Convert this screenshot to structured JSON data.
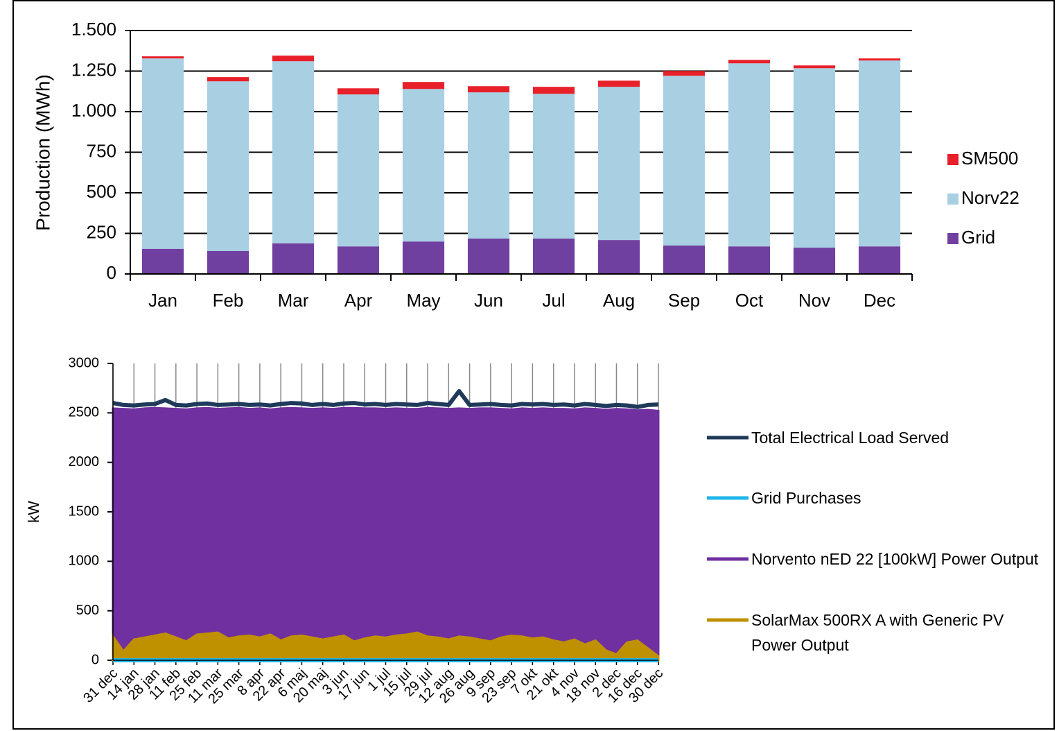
{
  "chart_data": [
    {
      "type": "bar",
      "stacked": true,
      "y_label": "Production (MWh)",
      "grid": true,
      "legend": "right",
      "categories": [
        "Jan",
        "Feb",
        "Mar",
        "Apr",
        "May",
        "Jun",
        "Jul",
        "Aug",
        "Sep",
        "Oct",
        "Nov",
        "Dec"
      ],
      "series": [
        {
          "name": "Grid",
          "color": "#7040a0",
          "values": [
            155,
            141,
            188,
            170,
            200,
            218,
            218,
            209,
            175,
            170,
            162,
            170
          ]
        },
        {
          "name": "Norv22",
          "color": "#a8cfe2",
          "values": [
            1173,
            1046,
            1123,
            936,
            940,
            901,
            892,
            944,
            1046,
            1128,
            1106,
            1145
          ]
        },
        {
          "name": "SM500",
          "color": "#e8202a",
          "values": [
            13,
            26,
            34,
            38,
            43,
            38,
            43,
            38,
            30,
            21,
            17,
            13
          ]
        }
      ],
      "ylim": [
        0,
        1500
      ],
      "yticks": [
        0,
        250,
        500,
        750,
        {
          "value": 1000,
          "label": "1.000"
        },
        {
          "value": 1250,
          "label": "1.250"
        },
        {
          "value": 1500,
          "label": "1.500"
        }
      ]
    },
    {
      "type": "line",
      "y_label": "kW",
      "xgrid": true,
      "legend": "right",
      "categories": [
        "31 dec",
        null,
        "14 jan",
        null,
        "28 jan",
        null,
        "11 feb",
        null,
        "25 feb",
        null,
        "11 mar",
        null,
        "25 mar",
        null,
        "8 apr",
        null,
        "22 apr",
        null,
        "6 maj",
        null,
        "20 maj",
        null,
        "3 jun",
        null,
        "17 jun",
        null,
        "1 jul",
        null,
        "15 jul",
        null,
        "29 jul",
        null,
        "12 aug",
        null,
        "26 aug",
        null,
        "9 sep",
        null,
        "23 sep",
        null,
        "7 okt",
        null,
        "21 okt",
        null,
        "4 nov",
        null,
        "18 nov",
        null,
        "2 dec",
        null,
        "16 dec",
        null,
        "30 dec"
      ],
      "series": [
        {
          "name": "Total Electrical Load Served",
          "color": "#1f3a5a",
          "fill": false,
          "values": [
            2600,
            2580,
            2575,
            2585,
            2590,
            2630,
            2580,
            2575,
            2590,
            2595,
            2580,
            2585,
            2590,
            2580,
            2585,
            2575,
            2590,
            2600,
            2595,
            2580,
            2590,
            2580,
            2595,
            2600,
            2585,
            2590,
            2580,
            2590,
            2585,
            2580,
            2600,
            2590,
            2580,
            2720,
            2580,
            2585,
            2590,
            2580,
            2575,
            2590,
            2585,
            2590,
            2580,
            2585,
            2575,
            2590,
            2580,
            2570,
            2580,
            2575,
            2560,
            2580,
            2585
          ]
        },
        {
          "name": "Grid Purchases",
          "color": "#1fb4e8",
          "fill": false,
          "values": [
            0,
            0,
            0,
            0,
            0,
            0,
            0,
            0,
            0,
            0,
            0,
            0,
            0,
            0,
            0,
            0,
            0,
            0,
            0,
            0,
            0,
            0,
            0,
            0,
            0,
            0,
            0,
            0,
            0,
            0,
            0,
            0,
            0,
            0,
            0,
            0,
            0,
            0,
            0,
            0,
            0,
            0,
            0,
            0,
            0,
            0,
            0,
            0,
            0,
            0,
            0,
            0,
            0
          ]
        },
        {
          "name": "Norvento nED 22 [100kW] Power Output",
          "color": "#7030a0",
          "fill": true,
          "values": [
            2545,
            2540,
            2535,
            2545,
            2550,
            2545,
            2540,
            2535,
            2545,
            2550,
            2540,
            2545,
            2550,
            2540,
            2545,
            2535,
            2545,
            2550,
            2545,
            2540,
            2545,
            2540,
            2550,
            2550,
            2545,
            2545,
            2540,
            2545,
            2540,
            2540,
            2550,
            2545,
            2540,
            2545,
            2540,
            2545,
            2545,
            2540,
            2535,
            2545,
            2540,
            2545,
            2540,
            2540,
            2535,
            2545,
            2540,
            2530,
            2540,
            2535,
            2525,
            2530,
            2520
          ]
        },
        {
          "name": "SolarMax 500RX A with Generic PV Power Output",
          "color": "#bf9000",
          "fill": true,
          "values": [
            240,
            90,
            210,
            230,
            250,
            270,
            230,
            190,
            260,
            270,
            280,
            220,
            240,
            250,
            230,
            260,
            200,
            240,
            250,
            230,
            210,
            230,
            250,
            190,
            220,
            240,
            230,
            250,
            260,
            280,
            240,
            230,
            210,
            240,
            230,
            210,
            190,
            230,
            250,
            240,
            220,
            230,
            200,
            180,
            210,
            160,
            200,
            100,
            60,
            180,
            200,
            120,
            40
          ]
        }
      ],
      "ylim": [
        0,
        3000
      ],
      "yticks": [
        0,
        500,
        1000,
        1500,
        2000,
        2500,
        3000
      ]
    }
  ]
}
